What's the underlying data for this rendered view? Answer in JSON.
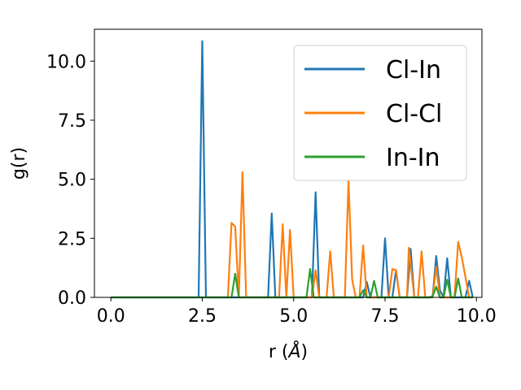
{
  "chart_data": {
    "type": "line",
    "xlabel": "r (",
    "xlabel_unit": "Å",
    "xlabel_close": ")",
    "ylabel": "g(r)",
    "xlim": [
      -0.45,
      10.15
    ],
    "ylim": [
      0,
      11.35
    ],
    "xticks": [
      0.0,
      2.5,
      5.0,
      7.5,
      10.0
    ],
    "xtick_labels": [
      "0.0",
      "2.5",
      "5.0",
      "7.5",
      "10.0"
    ],
    "yticks": [
      0.0,
      2.5,
      5.0,
      7.5,
      10.0
    ],
    "ytick_labels": [
      "0.0",
      "2.5",
      "5.0",
      "7.5",
      "10.0"
    ],
    "grid": false,
    "legend_position": "upper right",
    "series": [
      {
        "name": "Cl-In",
        "color": "#1f77b4",
        "points": [
          [
            0.0,
            0
          ],
          [
            2.4,
            0
          ],
          [
            2.5,
            10.85
          ],
          [
            2.6,
            0
          ],
          [
            4.3,
            0
          ],
          [
            4.4,
            3.55
          ],
          [
            4.5,
            0
          ],
          [
            5.5,
            0
          ],
          [
            5.6,
            4.45
          ],
          [
            5.7,
            0
          ],
          [
            6.9,
            0
          ],
          [
            7.0,
            0.65
          ],
          [
            7.1,
            0
          ],
          [
            7.4,
            0
          ],
          [
            7.5,
            2.5
          ],
          [
            7.6,
            0
          ],
          [
            7.7,
            0
          ],
          [
            7.8,
            1.15
          ],
          [
            7.9,
            0
          ],
          [
            8.1,
            0
          ],
          [
            8.2,
            2.05
          ],
          [
            8.3,
            0
          ],
          [
            8.8,
            0
          ],
          [
            8.9,
            1.75
          ],
          [
            9.0,
            0.3
          ],
          [
            9.1,
            0
          ],
          [
            9.2,
            1.65
          ],
          [
            9.3,
            0
          ],
          [
            9.7,
            0
          ],
          [
            9.8,
            0.7
          ],
          [
            9.9,
            0
          ]
        ]
      },
      {
        "name": "Cl-Cl",
        "color": "#ff7f0e",
        "points": [
          [
            3.2,
            0
          ],
          [
            3.3,
            3.15
          ],
          [
            3.4,
            3.0
          ],
          [
            3.5,
            0
          ],
          [
            3.6,
            5.3
          ],
          [
            3.7,
            0
          ],
          [
            4.6,
            0
          ],
          [
            4.7,
            3.1
          ],
          [
            4.8,
            0
          ],
          [
            4.9,
            2.85
          ],
          [
            5.0,
            0
          ],
          [
            5.5,
            0
          ],
          [
            5.6,
            1.15
          ],
          [
            5.7,
            0
          ],
          [
            5.9,
            0
          ],
          [
            6.0,
            1.95
          ],
          [
            6.1,
            0
          ],
          [
            6.4,
            0
          ],
          [
            6.5,
            4.95
          ],
          [
            6.6,
            0.75
          ],
          [
            6.7,
            0
          ],
          [
            6.8,
            0
          ],
          [
            6.9,
            2.2
          ],
          [
            7.0,
            0
          ],
          [
            7.6,
            0
          ],
          [
            7.7,
            1.2
          ],
          [
            7.8,
            1.15
          ],
          [
            7.9,
            0
          ],
          [
            8.1,
            0
          ],
          [
            8.15,
            2.1
          ],
          [
            8.3,
            0
          ],
          [
            8.4,
            0
          ],
          [
            8.5,
            1.95
          ],
          [
            8.6,
            0
          ],
          [
            8.8,
            0
          ],
          [
            8.9,
            1.3
          ],
          [
            9.0,
            0
          ],
          [
            9.4,
            0
          ],
          [
            9.5,
            2.35
          ],
          [
            9.6,
            1.7
          ],
          [
            9.8,
            0
          ],
          [
            9.9,
            0
          ]
        ]
      },
      {
        "name": "In-In",
        "color": "#2ca02c",
        "points": [
          [
            0.0,
            0
          ],
          [
            3.3,
            0
          ],
          [
            3.4,
            1.0
          ],
          [
            3.5,
            0
          ],
          [
            5.35,
            0
          ],
          [
            5.45,
            1.2
          ],
          [
            5.55,
            0
          ],
          [
            6.8,
            0
          ],
          [
            6.9,
            0.3
          ],
          [
            7.0,
            0
          ],
          [
            7.1,
            0
          ],
          [
            7.2,
            0.7
          ],
          [
            7.3,
            0
          ],
          [
            8.7,
            0
          ],
          [
            8.8,
            0.05
          ],
          [
            8.9,
            0.45
          ],
          [
            9.0,
            0
          ],
          [
            9.1,
            0
          ],
          [
            9.2,
            0.75
          ],
          [
            9.3,
            0
          ],
          [
            9.4,
            0
          ],
          [
            9.5,
            0.8
          ],
          [
            9.6,
            0
          ],
          [
            9.9,
            0
          ]
        ]
      }
    ]
  }
}
